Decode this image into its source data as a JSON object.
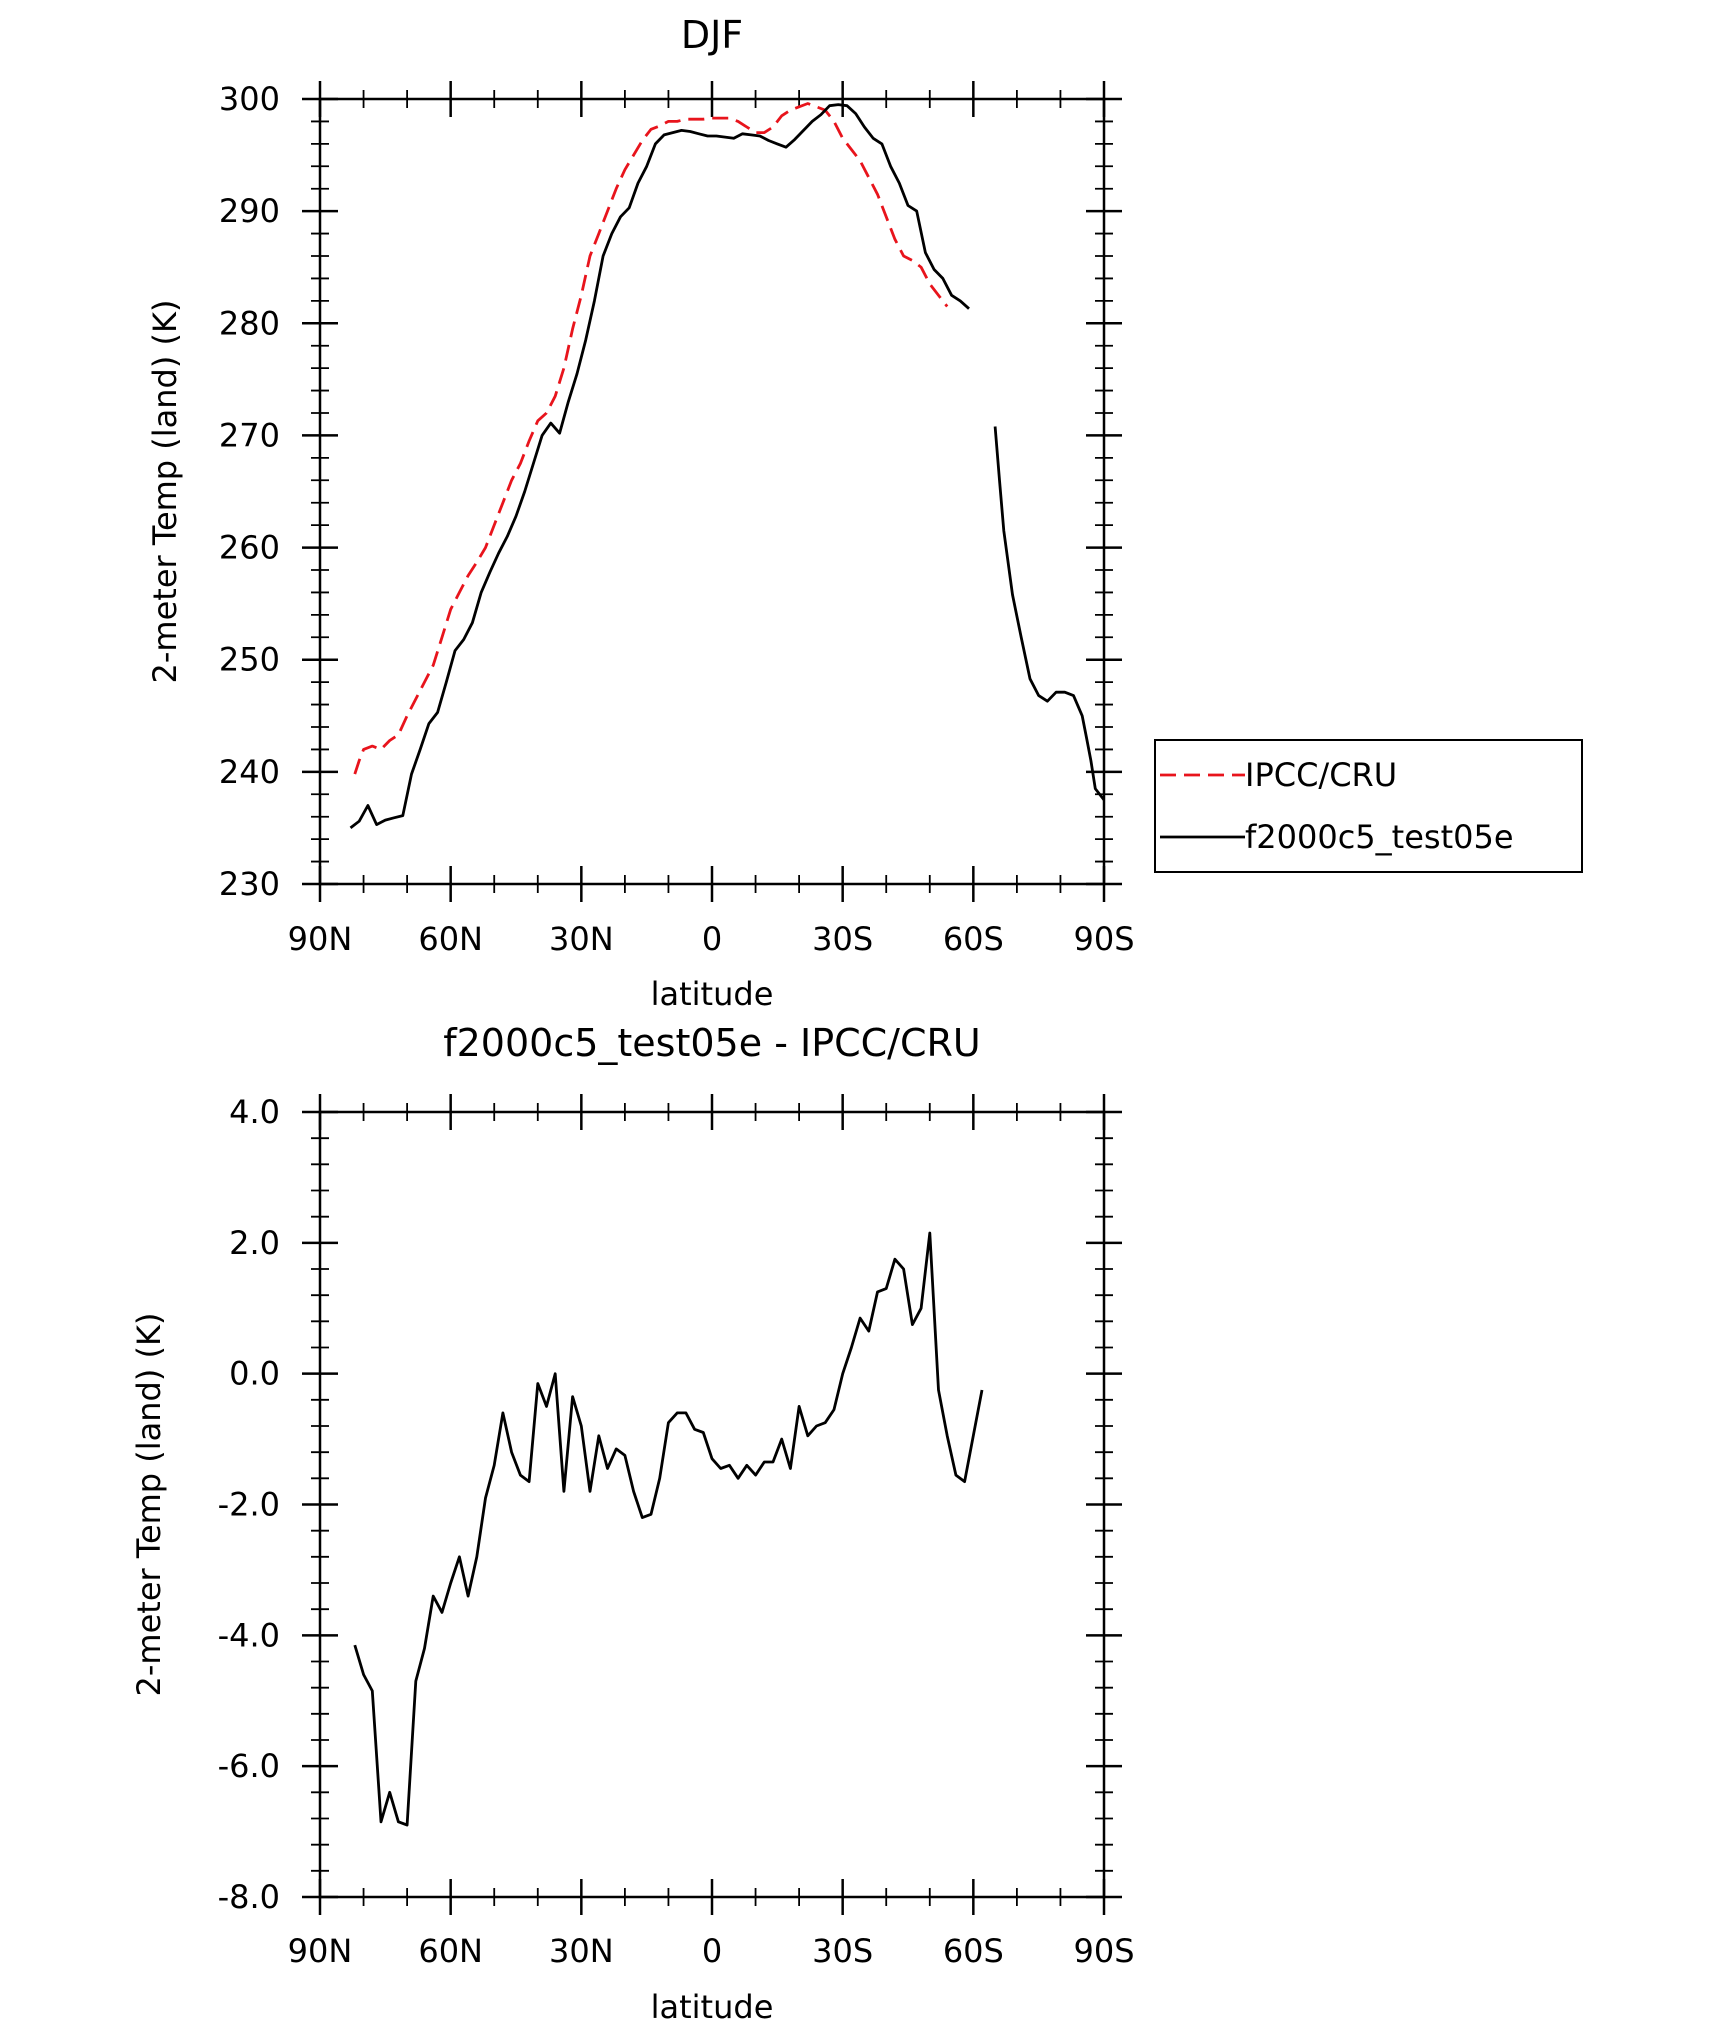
{
  "chart_data": [
    {
      "type": "line",
      "title": "DJF",
      "xlabel": "latitude",
      "ylabel": "2-meter Temp (land) (K)",
      "xlim": [
        90,
        -90
      ],
      "ylim": [
        230,
        300
      ],
      "x_ticks": [
        90,
        60,
        30,
        0,
        -30,
        -60,
        -90
      ],
      "x_tick_labels": [
        "90N",
        "60N",
        "30N",
        "0",
        "30S",
        "60S",
        "90S"
      ],
      "y_ticks": [
        230,
        240,
        250,
        260,
        270,
        280,
        290,
        300
      ],
      "y_tick_labels": [
        "230",
        "240",
        "250",
        "260",
        "270",
        "280",
        "300"
      ],
      "y_tick_labels_full": [
        "230",
        "240",
        "250",
        "260",
        "270",
        "280",
        "290",
        "300"
      ],
      "grid": false,
      "legend": "right-outside",
      "series": [
        {
          "name": "IPCC/CRU",
          "style": "dashed",
          "color": "#e8141c",
          "segments": [
            [
              [
                82,
                239.8
              ],
              [
                81,
                241.0
              ],
              [
                80,
                242.0
              ],
              [
                78,
                242.3
              ],
              [
                76,
                242.0
              ],
              [
                74,
                242.8
              ],
              [
                72,
                243.3
              ],
              [
                70,
                245.0
              ],
              [
                68,
                246.5
              ],
              [
                66,
                248.0
              ],
              [
                64,
                249.5
              ],
              [
                62,
                252.0
              ],
              [
                60,
                254.5
              ],
              [
                58,
                256.0
              ],
              [
                56,
                257.5
              ],
              [
                54,
                258.7
              ],
              [
                52,
                260.0
              ],
              [
                50,
                262.0
              ],
              [
                48,
                264.0
              ],
              [
                46,
                266.0
              ],
              [
                44,
                267.5
              ],
              [
                42,
                269.5
              ],
              [
                40,
                271.3
              ],
              [
                38,
                272.0
              ],
              [
                36,
                273.5
              ],
              [
                34,
                276.0
              ],
              [
                32,
                279.5
              ],
              [
                30,
                282.5
              ],
              [
                28,
                286.0
              ],
              [
                26,
                288.0
              ],
              [
                24,
                290.0
              ],
              [
                22,
                292.0
              ],
              [
                20,
                293.7
              ],
              [
                18,
                295.0
              ],
              [
                16,
                296.3
              ],
              [
                14,
                297.3
              ],
              [
                12,
                297.6
              ],
              [
                10,
                298.0
              ],
              [
                8,
                298.0
              ],
              [
                6,
                298.2
              ],
              [
                4,
                298.2
              ],
              [
                2,
                298.2
              ],
              [
                0,
                298.3
              ],
              [
                -2,
                298.3
              ],
              [
                -4,
                298.3
              ],
              [
                -6,
                298.0
              ],
              [
                -8,
                297.5
              ],
              [
                -10,
                297.0
              ],
              [
                -12,
                297.0
              ],
              [
                -14,
                297.5
              ],
              [
                -16,
                298.5
              ],
              [
                -18,
                299.0
              ],
              [
                -20,
                299.3
              ],
              [
                -22,
                299.6
              ],
              [
                -24,
                299.3
              ],
              [
                -26,
                299.0
              ],
              [
                -28,
                298.0
              ],
              [
                -30,
                296.5
              ],
              [
                -32,
                295.5
              ],
              [
                -34,
                294.5
              ],
              [
                -36,
                293.0
              ],
              [
                -38,
                291.5
              ],
              [
                -40,
                289.5
              ],
              [
                -42,
                287.5
              ],
              [
                -44,
                286.0
              ],
              [
                -46,
                285.6
              ],
              [
                -48,
                285.0
              ],
              [
                -50,
                283.5
              ],
              [
                -52,
                282.5
              ],
              [
                -54,
                281.5
              ]
            ]
          ]
        },
        {
          "name": "f2000c5_test05e",
          "style": "solid",
          "color": "#000000",
          "segments": [
            [
              [
                83,
                235.0
              ],
              [
                81,
                235.6
              ],
              [
                79,
                237.0
              ],
              [
                77,
                235.3
              ],
              [
                75,
                235.7
              ],
              [
                73,
                235.9
              ],
              [
                71,
                236.1
              ],
              [
                69,
                239.8
              ],
              [
                67,
                242.0
              ],
              [
                65,
                244.3
              ],
              [
                63,
                245.3
              ],
              [
                61,
                248.0
              ],
              [
                59,
                250.8
              ],
              [
                57,
                251.8
              ],
              [
                55,
                253.3
              ],
              [
                53,
                256.0
              ],
              [
                51,
                257.8
              ],
              [
                49,
                259.5
              ],
              [
                47,
                261.0
              ],
              [
                45,
                262.8
              ],
              [
                43,
                265.0
              ],
              [
                41,
                267.5
              ],
              [
                39,
                270.0
              ],
              [
                37,
                271.1
              ],
              [
                35,
                270.2
              ],
              [
                33,
                273.0
              ],
              [
                31,
                275.5
              ],
              [
                29,
                278.5
              ],
              [
                27,
                282.0
              ],
              [
                25,
                286.0
              ],
              [
                23,
                288.0
              ],
              [
                21,
                289.5
              ],
              [
                19,
                290.3
              ],
              [
                17,
                292.5
              ],
              [
                15,
                294.0
              ],
              [
                13,
                296.0
              ],
              [
                11,
                296.8
              ],
              [
                9,
                297.0
              ],
              [
                7,
                297.2
              ],
              [
                5,
                297.1
              ],
              [
                3,
                296.9
              ],
              [
                1,
                296.7
              ],
              [
                -1,
                296.7
              ],
              [
                -3,
                296.6
              ],
              [
                -5,
                296.5
              ],
              [
                -7,
                296.9
              ],
              [
                -9,
                296.8
              ],
              [
                -11,
                296.7
              ],
              [
                -13,
                296.3
              ],
              [
                -15,
                296.0
              ],
              [
                -17,
                295.7
              ],
              [
                -19,
                296.4
              ],
              [
                -21,
                297.2
              ],
              [
                -23,
                298.0
              ],
              [
                -25,
                298.6
              ],
              [
                -27,
                299.4
              ],
              [
                -29,
                299.5
              ],
              [
                -31,
                299.4
              ],
              [
                -33,
                298.7
              ],
              [
                -35,
                297.5
              ],
              [
                -37,
                296.5
              ],
              [
                -39,
                296.0
              ],
              [
                -41,
                294.0
              ],
              [
                -43,
                292.5
              ],
              [
                -45,
                290.5
              ],
              [
                -47,
                290.0
              ],
              [
                -49,
                286.3
              ],
              [
                -51,
                284.8
              ],
              [
                -53,
                284.0
              ],
              [
                -55,
                282.5
              ],
              [
                -57,
                282.0
              ],
              [
                -59,
                281.3
              ]
            ],
            [
              [
                -65,
                270.8
              ],
              [
                -66,
                266.0
              ],
              [
                -67,
                261.5
              ],
              [
                -69,
                255.8
              ],
              [
                -71,
                252.0
              ],
              [
                -73,
                248.3
              ],
              [
                -75,
                246.8
              ],
              [
                -77,
                246.3
              ],
              [
                -79,
                247.1
              ],
              [
                -81,
                247.1
              ],
              [
                -83,
                246.8
              ],
              [
                -85,
                245.0
              ],
              [
                -86,
                243.0
              ],
              [
                -87,
                241.0
              ],
              [
                -88,
                238.5
              ],
              [
                -90,
                237.5
              ]
            ]
          ]
        }
      ]
    },
    {
      "type": "line",
      "title": "f2000c5_test05e - IPCC/CRU",
      "xlabel": "latitude",
      "ylabel": "2-meter Temp (land) (K)",
      "xlim": [
        90,
        -90
      ],
      "ylim": [
        -8,
        4
      ],
      "x_ticks": [
        90,
        60,
        30,
        0,
        -30,
        -60,
        -90
      ],
      "x_tick_labels": [
        "90N",
        "60N",
        "30N",
        "0",
        "30S",
        "60S",
        "90S"
      ],
      "y_ticks": [
        -8,
        -6,
        -4,
        -2,
        0,
        2,
        4
      ],
      "y_tick_labels_full": [
        "-8.0",
        "-6.0",
        "-4.0",
        "-2.0",
        "0.0",
        "2.0",
        "4.0"
      ],
      "grid": false,
      "series": [
        {
          "style": "solid",
          "color": "#000000",
          "segments": [
            [
              [
                82,
                -4.15
              ],
              [
                80,
                -4.6
              ],
              [
                78,
                -4.85
              ],
              [
                76,
                -6.85
              ],
              [
                74,
                -6.4
              ],
              [
                72,
                -6.85
              ],
              [
                70,
                -6.9
              ],
              [
                68,
                -4.7
              ],
              [
                66,
                -4.2
              ],
              [
                64,
                -3.4
              ],
              [
                62,
                -3.65
              ],
              [
                60,
                -3.2
              ],
              [
                58,
                -2.8
              ],
              [
                56,
                -3.4
              ],
              [
                54,
                -2.8
              ],
              [
                52,
                -1.9
              ],
              [
                50,
                -1.4
              ],
              [
                48,
                -0.6
              ],
              [
                46,
                -1.2
              ],
              [
                44,
                -1.55
              ],
              [
                42,
                -1.65
              ],
              [
                40,
                -0.15
              ],
              [
                38,
                -0.5
              ],
              [
                36,
                0.0
              ],
              [
                34,
                -1.8
              ],
              [
                32,
                -0.35
              ],
              [
                30,
                -0.8
              ],
              [
                28,
                -1.8
              ],
              [
                26,
                -0.95
              ],
              [
                24,
                -1.45
              ],
              [
                22,
                -1.15
              ],
              [
                20,
                -1.25
              ],
              [
                18,
                -1.8
              ],
              [
                16,
                -2.2
              ],
              [
                14,
                -2.15
              ],
              [
                12,
                -1.6
              ],
              [
                10,
                -0.75
              ],
              [
                8,
                -0.6
              ],
              [
                6,
                -0.6
              ],
              [
                4,
                -0.85
              ],
              [
                2,
                -0.9
              ],
              [
                0,
                -1.3
              ],
              [
                -2,
                -1.45
              ],
              [
                -4,
                -1.4
              ],
              [
                -6,
                -1.6
              ],
              [
                -8,
                -1.4
              ],
              [
                -10,
                -1.55
              ],
              [
                -12,
                -1.35
              ],
              [
                -14,
                -1.35
              ],
              [
                -16,
                -1.0
              ],
              [
                -18,
                -1.45
              ],
              [
                -20,
                -0.5
              ],
              [
                -22,
                -0.95
              ],
              [
                -24,
                -0.8
              ],
              [
                -26,
                -0.75
              ],
              [
                -28,
                -0.55
              ],
              [
                -30,
                0.0
              ],
              [
                -32,
                0.4
              ],
              [
                -34,
                0.85
              ],
              [
                -36,
                0.65
              ],
              [
                -38,
                1.25
              ],
              [
                -40,
                1.3
              ],
              [
                -42,
                1.75
              ],
              [
                -44,
                1.6
              ],
              [
                -46,
                0.75
              ],
              [
                -48,
                1.0
              ],
              [
                -50,
                2.15
              ],
              [
                -52,
                -0.25
              ],
              [
                -54,
                -0.95
              ],
              [
                -56,
                -1.55
              ],
              [
                -58,
                -1.65
              ],
              [
                -60,
                -0.95
              ],
              [
                -62,
                -0.25
              ]
            ]
          ]
        }
      ]
    }
  ]
}
